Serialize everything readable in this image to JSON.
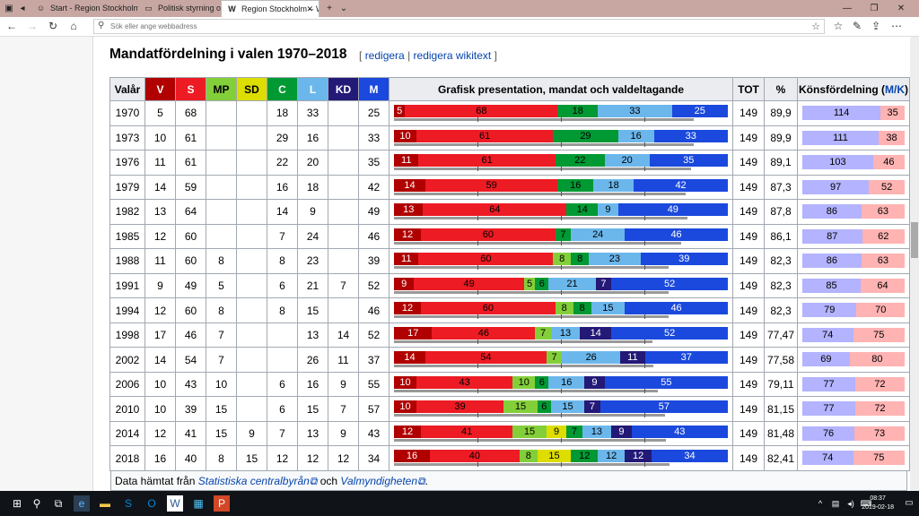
{
  "browser": {
    "tabs": [
      {
        "title": "Start - Region Stockholm",
        "icon": "person-icon"
      },
      {
        "title": "Politisk styrning och organis",
        "icon": "page-icon"
      },
      {
        "title": "Region Stockholm – Wi",
        "icon": "wikipedia-icon",
        "active": true
      }
    ],
    "address_placeholder": "Sök eller ange webbadress"
  },
  "page": {
    "heading": "Mandatfördelning i valen 1970–2018",
    "edit_open": "[",
    "edit_link": "redigera",
    "edit_sep": "|",
    "edit_wikitext_link": "redigera wikitext",
    "edit_close": "]",
    "footer_prefix": "Data hämtat från",
    "footer_link1": "Statistiska centralbyrån",
    "footer_and": "och",
    "footer_link2": "Valmyndigheten",
    "footer_suffix": "."
  },
  "table": {
    "headers": {
      "year": "Valår",
      "V": "V",
      "S": "S",
      "MP": "MP",
      "SD": "SD",
      "C": "C",
      "L": "L",
      "KD": "KD",
      "M": "M",
      "graph": "Grafisk presentation, mandat och valdeltagande",
      "tot": "TOT",
      "pct": "%",
      "gender_prefix": "Könsfördelning (",
      "gender_link": "M/K",
      "gender_suffix": ")"
    },
    "colors": {
      "V": "#b00000",
      "S": "#ed1b24",
      "MP": "#83cf39",
      "SD": "#dddd00",
      "C": "#009933",
      "L": "#6bb7ec",
      "KD": "#231977",
      "M": "#1b49dd",
      "V_head": "#b00000",
      "S_head": "#ed1b24",
      "MP_head": "#83cf39",
      "SD_head": "#dddd00",
      "C_head": "#009933",
      "L_head": "#6bb7ec",
      "KD_head": "#231977",
      "M_head": "#1b49dd",
      "male": "#b3b3ff",
      "female": "#ffb3b3"
    },
    "rows": [
      {
        "year": "1970",
        "V": "5",
        "S": "68",
        "MP": "",
        "SD": "",
        "C": "18",
        "L": "33",
        "KD": "",
        "M": "25",
        "tot": "149",
        "pct": "89,9",
        "men": "114",
        "women": "35"
      },
      {
        "year": "1973",
        "V": "10",
        "S": "61",
        "MP": "",
        "SD": "",
        "C": "29",
        "L": "16",
        "KD": "",
        "M": "33",
        "tot": "149",
        "pct": "89,9",
        "men": "111",
        "women": "38"
      },
      {
        "year": "1976",
        "V": "11",
        "S": "61",
        "MP": "",
        "SD": "",
        "C": "22",
        "L": "20",
        "KD": "",
        "M": "35",
        "tot": "149",
        "pct": "89,1",
        "men": "103",
        "women": "46"
      },
      {
        "year": "1979",
        "V": "14",
        "S": "59",
        "MP": "",
        "SD": "",
        "C": "16",
        "L": "18",
        "KD": "",
        "M": "42",
        "tot": "149",
        "pct": "87,3",
        "men": "97",
        "women": "52"
      },
      {
        "year": "1982",
        "V": "13",
        "S": "64",
        "MP": "",
        "SD": "",
        "C": "14",
        "L": "9",
        "KD": "",
        "M": "49",
        "tot": "149",
        "pct": "87,8",
        "men": "86",
        "women": "63"
      },
      {
        "year": "1985",
        "V": "12",
        "S": "60",
        "MP": "",
        "SD": "",
        "C": "7",
        "L": "24",
        "KD": "",
        "M": "46",
        "tot": "149",
        "pct": "86,1",
        "men": "87",
        "women": "62"
      },
      {
        "year": "1988",
        "V": "11",
        "S": "60",
        "MP": "8",
        "SD": "",
        "C": "8",
        "L": "23",
        "KD": "",
        "M": "39",
        "tot": "149",
        "pct": "82,3",
        "men": "86",
        "women": "63"
      },
      {
        "year": "1991",
        "V": "9",
        "S": "49",
        "MP": "5",
        "SD": "",
        "C": "6",
        "L": "21",
        "KD": "7",
        "M": "52",
        "tot": "149",
        "pct": "82,3",
        "men": "85",
        "women": "64"
      },
      {
        "year": "1994",
        "V": "12",
        "S": "60",
        "MP": "8",
        "SD": "",
        "C": "8",
        "L": "15",
        "KD": "",
        "M": "46",
        "tot": "149",
        "pct": "82,3",
        "men": "79",
        "women": "70"
      },
      {
        "year": "1998",
        "V": "17",
        "S": "46",
        "MP": "7",
        "SD": "",
        "C": "",
        "L": "13",
        "KD": "14",
        "M": "52",
        "tot": "149",
        "pct": "77,47",
        "men": "74",
        "women": "75"
      },
      {
        "year": "2002",
        "V": "14",
        "S": "54",
        "MP": "7",
        "SD": "",
        "C": "",
        "L": "26",
        "KD": "11",
        "M": "37",
        "tot": "149",
        "pct": "77,58",
        "men": "69",
        "women": "80"
      },
      {
        "year": "2006",
        "V": "10",
        "S": "43",
        "MP": "10",
        "SD": "",
        "C": "6",
        "L": "16",
        "KD": "9",
        "M": "55",
        "tot": "149",
        "pct": "79,11",
        "men": "77",
        "women": "72"
      },
      {
        "year": "2010",
        "V": "10",
        "S": "39",
        "MP": "15",
        "SD": "",
        "C": "6",
        "L": "15",
        "KD": "7",
        "M": "57",
        "tot": "149",
        "pct": "81,15",
        "men": "77",
        "women": "72"
      },
      {
        "year": "2014",
        "V": "12",
        "S": "41",
        "MP": "15",
        "SD": "9",
        "C": "7",
        "L": "13",
        "KD": "9",
        "M": "43",
        "tot": "149",
        "pct": "81,48",
        "men": "76",
        "women": "73"
      },
      {
        "year": "2018",
        "V": "16",
        "S": "40",
        "MP": "8",
        "SD": "15",
        "C": "12",
        "L": "12",
        "KD": "12",
        "M": "34",
        "tot": "149",
        "pct": "82,41",
        "men": "74",
        "women": "75"
      }
    ]
  },
  "taskbar": {
    "time": "08:37",
    "date": "2019-02-18"
  }
}
